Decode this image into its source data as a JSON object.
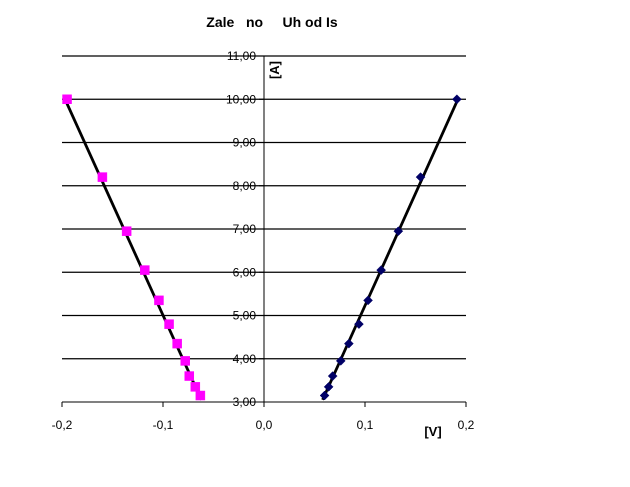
{
  "chart_data": {
    "type": "scatter",
    "title": "Zale   no     Uh od Is",
    "xlabel": "[V]",
    "ylabel": "[A]",
    "xlim": [
      -0.2,
      0.2
    ],
    "ylim": [
      3.0,
      11.0
    ],
    "x_ticks": [
      -0.2,
      -0.1,
      0.0,
      0.1,
      0.2
    ],
    "x_tick_labels": [
      "-0,2",
      "-0,1",
      "0,0",
      "0,1",
      "0,2"
    ],
    "y_ticks": [
      3,
      4,
      5,
      6,
      7,
      8,
      9,
      10,
      11
    ],
    "y_tick_labels": [
      "3,00",
      "4,00",
      "5,00",
      "6,00",
      "7,00",
      "8,00",
      "9,00",
      "10,00",
      "11,00"
    ],
    "grid": "horizontal",
    "legend": "none",
    "series": [
      {
        "marker": "square",
        "color": "#ff00ff",
        "points": [
          {
            "x": -0.195,
            "y": 10.0
          },
          {
            "x": -0.16,
            "y": 8.2
          },
          {
            "x": -0.136,
            "y": 6.95
          },
          {
            "x": -0.118,
            "y": 6.05
          },
          {
            "x": -0.104,
            "y": 5.35
          },
          {
            "x": -0.094,
            "y": 4.8
          },
          {
            "x": -0.086,
            "y": 4.35
          },
          {
            "x": -0.078,
            "y": 3.95
          },
          {
            "x": -0.074,
            "y": 3.6
          },
          {
            "x": -0.068,
            "y": 3.35
          },
          {
            "x": -0.063,
            "y": 3.15
          }
        ],
        "trendline": [
          {
            "x": -0.197,
            "y": 10.0
          },
          {
            "x": -0.062,
            "y": 3.05
          }
        ]
      },
      {
        "marker": "diamond",
        "color": "#000066",
        "points": [
          {
            "x": 0.191,
            "y": 10.0
          },
          {
            "x": 0.155,
            "y": 8.2
          },
          {
            "x": 0.133,
            "y": 6.95
          },
          {
            "x": 0.116,
            "y": 6.05
          },
          {
            "x": 0.103,
            "y": 5.35
          },
          {
            "x": 0.094,
            "y": 4.8
          },
          {
            "x": 0.084,
            "y": 4.35
          },
          {
            "x": 0.076,
            "y": 3.95
          },
          {
            "x": 0.068,
            "y": 3.6
          },
          {
            "x": 0.064,
            "y": 3.35
          },
          {
            "x": 0.06,
            "y": 3.15
          }
        ],
        "trendline": [
          {
            "x": 0.058,
            "y": 3.05
          },
          {
            "x": 0.192,
            "y": 10.0
          }
        ]
      }
    ]
  }
}
